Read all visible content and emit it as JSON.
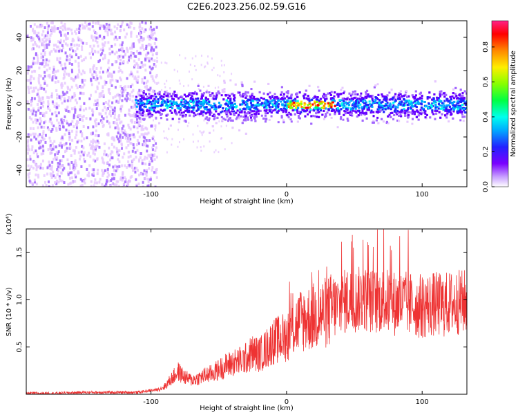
{
  "page": {
    "title": "C2E6.2023.256.02.59.G16"
  },
  "colors": {
    "snr_line": "#ee3333",
    "axes": "#000000",
    "colormap": [
      "#ffffff",
      "#e6c8ff",
      "#a266ff",
      "#6600ff",
      "#2222ff",
      "#00aaff",
      "#00ffee",
      "#00ff66",
      "#88ff00",
      "#ffee00",
      "#ff8800",
      "#ff0000",
      "#ff2288"
    ]
  },
  "chart_data": [
    {
      "type": "heatmap",
      "title": "C2E6.2023.256.02.59.G16",
      "xlabel": "Height of straight line (km)",
      "ylabel": "Frequency (Hz)",
      "xlim": [
        -192,
        133
      ],
      "ylim": [
        -50,
        50
      ],
      "xticks": [
        -100,
        0,
        100
      ],
      "xtick_labels": [
        "-100",
        "0",
        "100"
      ],
      "yticks": [
        -40,
        -20,
        0,
        20,
        40
      ],
      "ytick_labels": [
        "-40",
        "-20",
        "0",
        "20",
        "40"
      ],
      "grid": false,
      "description_of_features": "diffuse noise below about -95 km; concentrated band near 0 Hz from -110 to 133 km; strongest amplitude (red) near 10-30 km",
      "colorbar": {
        "label": "Normalized spectral amplitude",
        "range": [
          0.0,
          0.95
        ],
        "ticks": [
          0.0,
          0.2,
          0.4,
          0.6,
          0.8
        ],
        "tick_labels": [
          "0.0",
          "0.2",
          "0.4",
          "0.6",
          "0.8"
        ]
      }
    },
    {
      "type": "line",
      "xlabel": "Height of straight line (km)",
      "ylabel": "SNR (10 * v/v)",
      "y_multiplier": "(x10⁴)",
      "xlim": [
        -192,
        133
      ],
      "ylim": [
        0,
        1.75
      ],
      "xticks": [
        -100,
        0,
        100
      ],
      "xtick_labels": [
        "-100",
        "0",
        "100"
      ],
      "yticks": [
        0.5,
        1.0,
        1.5
      ],
      "ytick_labels": [
        "0.5",
        "1.0",
        "1.5"
      ],
      "grid": false,
      "series": [
        {
          "x": [
            -192,
            -170,
            -150,
            -130,
            -110,
            -95,
            -90,
            -85,
            -80,
            -75,
            -70,
            -65,
            -60,
            -55,
            -50,
            -45,
            -40,
            -35,
            -30,
            -25,
            -20,
            -15,
            -10,
            -5,
            0,
            5,
            10,
            15,
            20,
            25,
            30,
            35,
            40,
            45,
            50,
            55,
            60,
            65,
            70,
            75,
            80,
            85,
            90,
            95,
            100,
            105,
            110,
            115,
            120,
            125,
            133
          ],
          "y": [
            0.01,
            0.01,
            0.02,
            0.02,
            0.02,
            0.05,
            0.08,
            0.16,
            0.24,
            0.18,
            0.15,
            0.17,
            0.2,
            0.22,
            0.26,
            0.3,
            0.33,
            0.35,
            0.38,
            0.44,
            0.42,
            0.48,
            0.56,
            0.58,
            0.62,
            0.7,
            0.78,
            0.8,
            0.82,
            0.86,
            0.86,
            0.92,
            0.95,
            1.0,
            0.98,
            1.02,
            1.0,
            0.98,
            1.0,
            0.98,
            0.96,
            0.97,
            0.95,
            0.94,
            0.93,
            0.95,
            0.95,
            0.94,
            0.96,
            0.97,
            0.98
          ]
        }
      ]
    }
  ]
}
